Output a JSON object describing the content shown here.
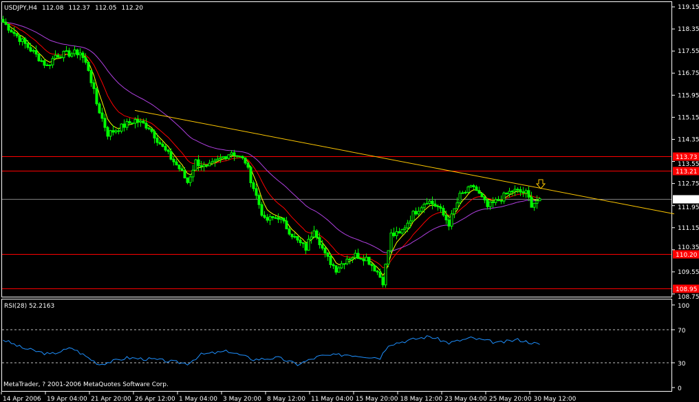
{
  "header": {
    "symbol": "USDJPY,H4",
    "open": "112.08",
    "high": "112.37",
    "low": "112.05",
    "close": "112.20"
  },
  "rsi_label": "RSI(28) 52.2163",
  "copyright": "MetaTrader, ? 2001-2006 MetaQuotes Software Corp.",
  "colors": {
    "background": "#000000",
    "candle": "#00ff00",
    "ma_fast": "#ffff00",
    "ma_mid": "#ff0000",
    "ma_slow": "#b040e0",
    "trendline": "#ffc800",
    "level": "#ff0000",
    "current": "#808080",
    "rsi": "#1e90ff",
    "arrow": "#ffc800"
  },
  "chart_data": [
    {
      "type": "candlestick",
      "title": "USDJPY,H4",
      "ylim": [
        108.75,
        119.15
      ],
      "y_ticks": [
        "119.15",
        "118.35",
        "117.55",
        "116.75",
        "115.95",
        "115.15",
        "114.35",
        "113.55",
        "112.75",
        "111.95",
        "111.15",
        "110.35",
        "109.55",
        "108.75"
      ],
      "x_ticks": [
        "14 Apr 2006",
        "19 Apr 04:00",
        "21 Apr 20:00",
        "26 Apr 12:00",
        "1 May 04:00",
        "3 May 20:00",
        "8 May 12:00",
        "11 May 04:00",
        "15 May 20:00",
        "18 May 12:00",
        "23 May 04:00",
        "25 May 20:00",
        "30 May 12:00"
      ],
      "bars_per_tick": 16,
      "close_path_by_bar": [
        [
          0,
          118.6
        ],
        [
          7,
          117.9
        ],
        [
          16,
          117.0
        ],
        [
          19,
          117.4
        ],
        [
          28,
          117.5
        ],
        [
          31,
          116.9
        ],
        [
          34,
          115.65
        ],
        [
          38,
          114.55
        ],
        [
          43,
          114.8
        ],
        [
          48,
          115.05
        ],
        [
          53,
          114.8
        ],
        [
          58,
          114.05
        ],
        [
          64,
          113.3
        ],
        [
          67,
          112.8
        ],
        [
          70,
          113.55
        ],
        [
          74,
          113.3
        ],
        [
          79,
          113.65
        ],
        [
          83,
          113.9
        ],
        [
          88,
          113.55
        ],
        [
          90,
          112.9
        ],
        [
          95,
          111.4
        ],
        [
          100,
          111.55
        ],
        [
          107,
          110.65
        ],
        [
          110,
          110.4
        ],
        [
          113,
          111.15
        ],
        [
          117,
          110.15
        ],
        [
          121,
          109.65
        ],
        [
          125,
          110.05
        ],
        [
          128,
          110.15
        ],
        [
          132,
          110.05
        ],
        [
          136,
          109.55
        ],
        [
          138,
          109.2
        ],
        [
          141,
          110.9
        ],
        [
          144,
          110.9
        ],
        [
          149,
          111.65
        ],
        [
          154,
          112.15
        ],
        [
          158,
          111.9
        ],
        [
          162,
          111.3
        ],
        [
          166,
          112.3
        ],
        [
          171,
          112.65
        ],
        [
          176,
          111.9
        ],
        [
          180,
          112.15
        ],
        [
          185,
          112.5
        ],
        [
          190,
          112.4
        ],
        [
          192,
          112.0
        ],
        [
          195,
          112.2
        ]
      ],
      "levels": [
        {
          "price": 113.73,
          "label": "113.73",
          "color": "#ff0000"
        },
        {
          "price": 113.21,
          "label": "113.21",
          "color": "#ff0000"
        },
        {
          "price": 112.2,
          "label": "112.20",
          "color": "#808080",
          "current": true
        },
        {
          "price": 110.2,
          "label": "110.20",
          "color": "#ff0000"
        },
        {
          "price": 108.95,
          "label": "108.95",
          "color": "#ff0000"
        }
      ],
      "trendline": {
        "from": [
          48,
          115.4
        ],
        "to": [
          244,
          111.65
        ]
      },
      "moving_averages": [
        {
          "period": 5,
          "color": "#ffff00"
        },
        {
          "period": 13,
          "color": "#ff0000"
        },
        {
          "period": 34,
          "color": "#b040e0"
        }
      ]
    },
    {
      "type": "line",
      "title": "RSI(28) 52.2163",
      "ylim": [
        0,
        100
      ],
      "y_ticks": [
        "100",
        "70",
        "30",
        "0"
      ],
      "levels": [
        70,
        30
      ],
      "values_by_bar": [
        [
          0,
          58
        ],
        [
          7,
          48
        ],
        [
          17,
          40
        ],
        [
          25,
          48
        ],
        [
          35,
          28
        ],
        [
          45,
          36
        ],
        [
          55,
          34
        ],
        [
          67,
          29
        ],
        [
          72,
          40
        ],
        [
          82,
          44
        ],
        [
          91,
          34
        ],
        [
          100,
          36
        ],
        [
          107,
          28
        ],
        [
          115,
          38
        ],
        [
          125,
          40
        ],
        [
          137,
          36
        ],
        [
          140,
          52
        ],
        [
          150,
          59
        ],
        [
          155,
          62
        ],
        [
          162,
          54
        ],
        [
          170,
          60
        ],
        [
          180,
          54
        ],
        [
          187,
          58
        ],
        [
          195,
          52.2
        ]
      ]
    }
  ]
}
